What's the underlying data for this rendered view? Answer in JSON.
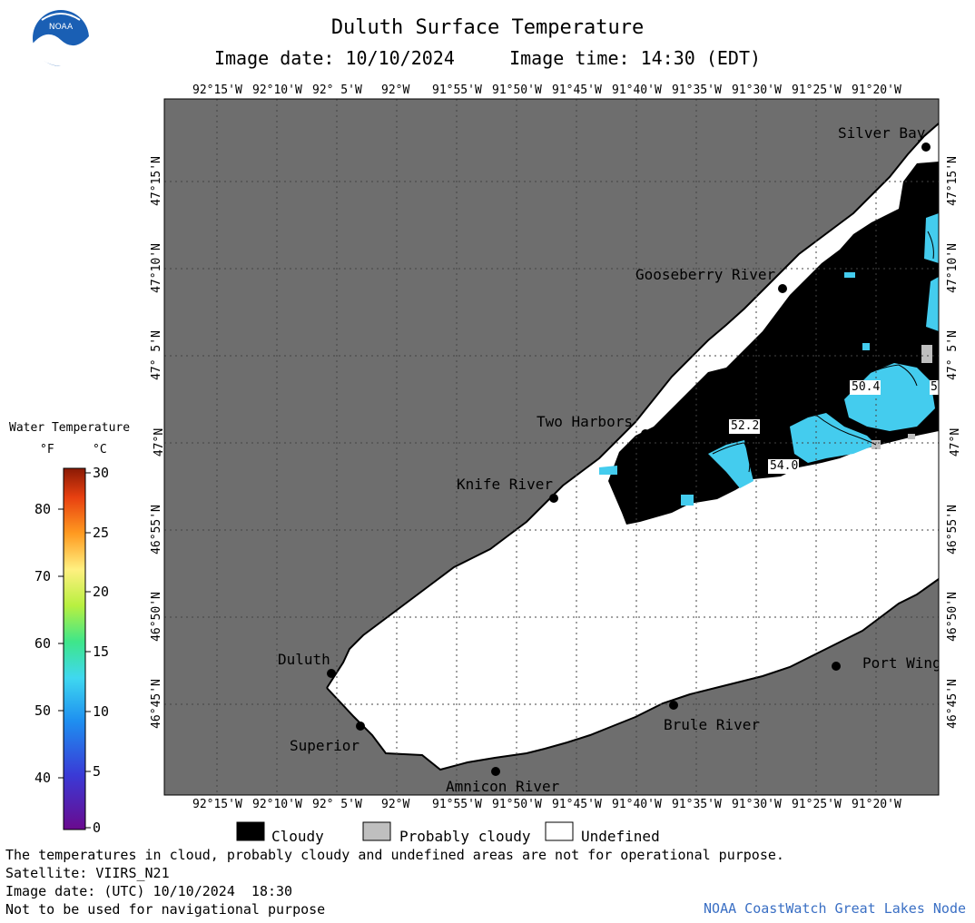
{
  "header": {
    "logo": "noaa-logo",
    "title": "Duluth Surface Temperature",
    "subtitle": "Image date: 10/10/2024     Image time: 14:30 (EDT)"
  },
  "map": {
    "lon_labels": [
      "92°15'W",
      "92°10'W",
      "92° 5'W",
      "92°W",
      "91°55'W",
      "91°50'W",
      "91°45'W",
      "91°40'W",
      "91°35'W",
      "91°30'W",
      "91°25'W",
      "91°20'W"
    ],
    "lat_labels": [
      "47°15'N",
      "47°10'N",
      "47° 5'N",
      "47°N",
      "46°55'N",
      "46°50'N",
      "46°45'N"
    ],
    "places": [
      {
        "name": "Silver Bay"
      },
      {
        "name": "Gooseberry River"
      },
      {
        "name": "Two Harbors"
      },
      {
        "name": "Knife River"
      },
      {
        "name": "Duluth"
      },
      {
        "name": "Superior"
      },
      {
        "name": "Amnicon River"
      },
      {
        "name": "Brule River"
      },
      {
        "name": "Port Wing"
      }
    ],
    "isotherm_labels": [
      "50.4",
      "52.2",
      "54.0",
      "5"
    ],
    "colors": {
      "land": "#6e6e6e",
      "water": "#ffffff",
      "cloud": "#000000",
      "probably_cloudy": "#bfbfbf",
      "warm_water": "#44ccee"
    }
  },
  "scale": {
    "title": "Water Temperature",
    "unit_f": "°F",
    "unit_c": "°C",
    "f_ticks": [
      "80",
      "70",
      "60",
      "50",
      "40"
    ],
    "c_ticks": [
      "30",
      "25",
      "20",
      "15",
      "10",
      "5",
      "0"
    ]
  },
  "legend": {
    "cloudy": "Cloudy",
    "probably_cloudy": "Probably cloudy",
    "undefined": "Undefined"
  },
  "footer": {
    "note": "The temperatures in cloud, probably cloudy and undefined areas are not for operational purpose.",
    "satellite": "Satellite: VIIRS_N21",
    "utc_date": "Image date: (UTC) 10/10/2024  18:30",
    "nav_warning": "Not to be used for navigational purpose",
    "credit": "NOAA CoastWatch Great Lakes Node"
  }
}
